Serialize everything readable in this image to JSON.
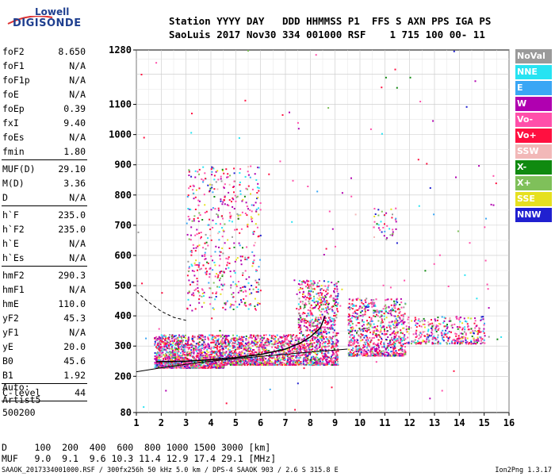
{
  "logo": {
    "line1": "Lowell",
    "line2": "DIGISONDE"
  },
  "header": {
    "line1": "Station YYYY DAY   DDD HHMMSS P1  FFS S AXN PPS IGA PS",
    "line2": "SaoLuis 2017 Nov30 334 001000 RSF    1 715 100 00- 11"
  },
  "params": [
    {
      "k": "foF2",
      "v": "8.650"
    },
    {
      "k": "foF1",
      "v": "N/A"
    },
    {
      "k": "foF1p",
      "v": "N/A"
    },
    {
      "k": "foE",
      "v": "N/A"
    },
    {
      "k": "foEp",
      "v": "0.39"
    },
    {
      "k": "fxI",
      "v": "9.40"
    },
    {
      "k": "foEs",
      "v": "N/A"
    },
    {
      "k": "fmin",
      "v": "1.80"
    },
    {
      "k": "MUF(D)",
      "v": "29.10"
    },
    {
      "k": "M(D)",
      "v": "3.36"
    },
    {
      "k": "D",
      "v": "N/A"
    },
    {
      "k": "h`F",
      "v": "235.0"
    },
    {
      "k": "h`F2",
      "v": "235.0"
    },
    {
      "k": "h`E",
      "v": "N/A"
    },
    {
      "k": "h`Es",
      "v": "N/A"
    },
    {
      "k": "hmF2",
      "v": "290.3"
    },
    {
      "k": "hmF1",
      "v": "N/A"
    },
    {
      "k": "hmE",
      "v": "110.0"
    },
    {
      "k": "yF2",
      "v": "45.3"
    },
    {
      "k": "yF1",
      "v": "N/A"
    },
    {
      "k": "yE",
      "v": "20.0"
    },
    {
      "k": "B0",
      "v": "45.6"
    },
    {
      "k": "B1",
      "v": "1.92"
    },
    {
      "k": "C-level",
      "v": "44"
    }
  ],
  "auto": {
    "line1": "Auto:",
    "line2": "Artist5",
    "line3": "500200"
  },
  "legend": [
    {
      "label": "NoVal",
      "color": "#9a9a9a"
    },
    {
      "label": "NNE",
      "color": "#27e3f2"
    },
    {
      "label": "E",
      "color": "#3aa6f5"
    },
    {
      "label": "W",
      "color": "#b000b0"
    },
    {
      "label": "Vo-",
      "color": "#ff4faa"
    },
    {
      "label": "Vo+",
      "color": "#ff1040"
    },
    {
      "label": "SSW",
      "color": "#f2b8b8"
    },
    {
      "label": "X-",
      "color": "#108a10"
    },
    {
      "label": "X+",
      "color": "#7fc05a"
    },
    {
      "label": "SSE",
      "color": "#e6e020"
    },
    {
      "label": "NNW",
      "color": "#2020d0"
    }
  ],
  "footer": {
    "line1": "D     100  200  400  600  800 1000 1500 3000 [km]",
    "line2": "MUF   9.0  9.1  9.6 10.3 11.4 12.9 17.4 29.1 [MHz]"
  },
  "caption": "SAAOK_2017334001000.RSF / 300fx256h 50 kHz 5.0 km / DPS-4 SAAOK 903 / 2.6 S 315.8 E",
  "version": "Ion2Png 1.3.17",
  "chart_data": {
    "type": "scatter",
    "x_ticks": [
      1,
      2,
      3,
      4,
      5,
      6,
      7,
      8,
      9,
      10,
      11,
      12,
      13,
      14,
      15,
      16
    ],
    "y_ticks": [
      80,
      200,
      300,
      400,
      500,
      600,
      700,
      800,
      900,
      1000,
      1100,
      1280
    ],
    "y_tick_labels": [
      "80",
      "200",
      "300",
      "400",
      "500",
      "600",
      "700",
      "800",
      "900",
      "1000",
      "1100",
      "1280"
    ],
    "xlim": [
      1,
      16
    ],
    "ylim": [
      80,
      1280
    ],
    "grid": true,
    "legend_position": "right",
    "curves": {
      "dashed_trace": {
        "x": [
          1.0,
          1.5,
          2.0,
          2.5,
          3.0
        ],
        "y": [
          480,
          445,
          415,
          395,
          385
        ]
      },
      "profile": {
        "x": [
          1.8,
          3.0,
          4.0,
          5.0,
          6.0,
          7.0,
          7.6,
          8.0,
          8.4,
          8.6
        ],
        "y": [
          248,
          250,
          255,
          262,
          272,
          290,
          310,
          330,
          360,
          400
        ]
      },
      "solid_trace": {
        "x": [
          1.0,
          2.0,
          3.0,
          4.0,
          5.0,
          6.0,
          7.0,
          8.0,
          9.0,
          9.5
        ],
        "y": [
          215,
          228,
          240,
          250,
          258,
          266,
          273,
          280,
          287,
          290
        ]
      }
    },
    "clusters": [
      {
        "x": [
          1.7,
          4.5
        ],
        "y": [
          230,
          340
        ],
        "n": 1300
      },
      {
        "x": [
          4.5,
          7.5
        ],
        "y": [
          240,
          340
        ],
        "n": 1000
      },
      {
        "x": [
          7.5,
          9.1
        ],
        "y": [
          240,
          520
        ],
        "n": 900
      },
      {
        "x": [
          9.5,
          11.8
        ],
        "y": [
          270,
          460
        ],
        "n": 800
      },
      {
        "x": [
          11.8,
          15.0
        ],
        "y": [
          310,
          400
        ],
        "n": 350
      },
      {
        "x": [
          3.0,
          6.0
        ],
        "y": [
          420,
          900
        ],
        "n": 500
      },
      {
        "x": [
          10.5,
          11.5
        ],
        "y": [
          640,
          760
        ],
        "n": 40
      },
      {
        "x": [
          1.0,
          16.0
        ],
        "y": [
          80,
          1280
        ],
        "n": 120
      }
    ]
  }
}
